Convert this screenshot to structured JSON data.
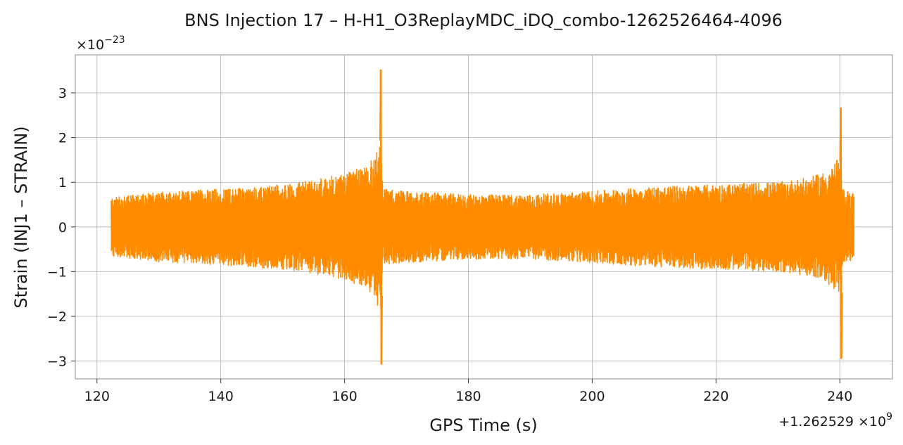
{
  "chart_data": {
    "type": "line",
    "title": "BNS Injection 17 – H-H1_O3ReplayMDC_iDQ_combo-1262526464-4096",
    "xlabel": "GPS Time (s)",
    "ylabel": "Strain (INJ1 – STRAIN)",
    "x_offset_label": "+1.262529",
    "x_offset_exponent_label": "×10",
    "x_offset_exponent": "9",
    "y_scale_base": "×10",
    "y_scale_exponent": "−23",
    "xlim": [
      116.5,
      248.5
    ],
    "ylim": [
      -3.4,
      3.85
    ],
    "x_ticks": [
      {
        "value": 120,
        "label": "120"
      },
      {
        "value": 140,
        "label": "140"
      },
      {
        "value": 160,
        "label": "160"
      },
      {
        "value": 180,
        "label": "180"
      },
      {
        "value": 200,
        "label": "200"
      },
      {
        "value": 220,
        "label": "220"
      },
      {
        "value": 240,
        "label": "240"
      }
    ],
    "y_ticks": [
      {
        "value": 3,
        "label": "3"
      },
      {
        "value": 2,
        "label": "2"
      },
      {
        "value": 1,
        "label": "1"
      },
      {
        "value": 0,
        "label": "0"
      },
      {
        "value": -1,
        "label": "−1"
      },
      {
        "value": -2,
        "label": "−2"
      },
      {
        "value": -3,
        "label": "−3"
      }
    ],
    "grid": true,
    "series": [
      {
        "color": "#ff8c00",
        "x_start": 122.3,
        "x_end": 242.3,
        "envelope": [
          {
            "x": 122.3,
            "amp": 0.65
          },
          {
            "x": 130,
            "amp": 0.78
          },
          {
            "x": 140,
            "amp": 0.85
          },
          {
            "x": 150,
            "amp": 0.95
          },
          {
            "x": 155,
            "amp": 1.05
          },
          {
            "x": 160,
            "amp": 1.2
          },
          {
            "x": 163,
            "amp": 1.35
          },
          {
            "x": 165,
            "amp": 1.6
          },
          {
            "x": 165.8,
            "amp": 2.0
          },
          {
            "x": 166.2,
            "amp": 0.85
          },
          {
            "x": 170,
            "amp": 0.8
          },
          {
            "x": 180,
            "amp": 0.72
          },
          {
            "x": 190,
            "amp": 0.72
          },
          {
            "x": 200,
            "amp": 0.8
          },
          {
            "x": 210,
            "amp": 0.9
          },
          {
            "x": 220,
            "amp": 0.95
          },
          {
            "x": 230,
            "amp": 1.0
          },
          {
            "x": 235,
            "amp": 1.1
          },
          {
            "x": 238,
            "amp": 1.25
          },
          {
            "x": 239.8,
            "amp": 1.55
          },
          {
            "x": 240.4,
            "amp": 0.85
          },
          {
            "x": 242.3,
            "amp": 0.75
          }
        ],
        "spikes": [
          {
            "x": 165.9,
            "max": 3.52,
            "min": -3.08
          },
          {
            "x": 240.2,
            "max": 2.67,
            "min": -2.95
          }
        ]
      }
    ]
  }
}
